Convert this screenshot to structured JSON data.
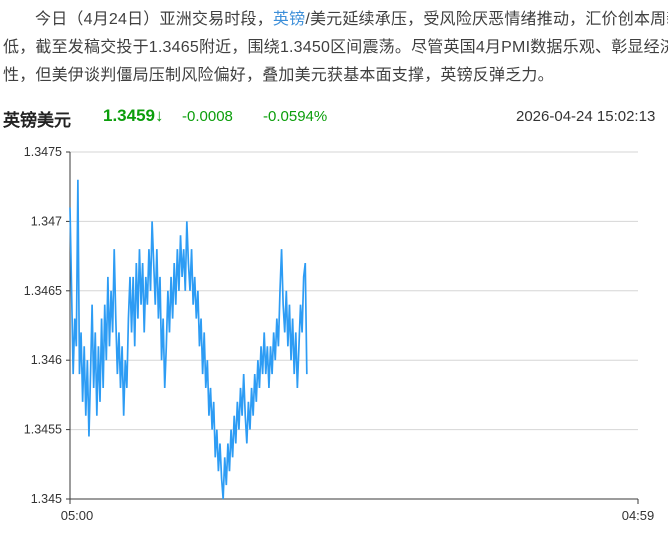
{
  "article": {
    "part1": "今日（4月24日）亚洲交易时段，",
    "link_text": "英镑",
    "part2": "/美元延续承压，受风险厌恶情绪推动，汇价创本周新低，截至发稿交投于1.3465附近，围绕1.3450区间震荡。尽管英国4月PMI数据乐观、彰显经济韧性，但美伊谈判僵局压制风险偏好，叠加美元获基本面支撑，英镑反弹乏力。"
  },
  "quote": {
    "pair_name": "英镑美元",
    "price": "1.3459",
    "direction_arrow": "↓",
    "change": "-0.0008",
    "change_pct": "-0.0594%",
    "timestamp": "2026-04-24 15:02:13"
  },
  "colors": {
    "link_blue": "#3d8fd9",
    "down_green": "#0b9e0b",
    "line_blue": "#2d9cf4"
  },
  "chart_data": {
    "type": "line",
    "title": "",
    "xlabel": "",
    "ylabel": "",
    "grid": true,
    "legend": "none",
    "x_unit": "minutes since 05:00",
    "x_range_minutes": [
      0,
      1439
    ],
    "xticks": [
      {
        "pos": 0,
        "label": "05:00"
      },
      {
        "pos": 1439,
        "label": "04:59"
      }
    ],
    "ylim": [
      1.345,
      1.3475
    ],
    "yticks": [
      {
        "v": 1.345,
        "label": "1.345"
      },
      {
        "v": 1.3455,
        "label": "1.3455"
      },
      {
        "v": 1.346,
        "label": "1.346"
      },
      {
        "v": 1.3465,
        "label": "1.3465"
      },
      {
        "v": 1.347,
        "label": "1.347"
      },
      {
        "v": 1.3475,
        "label": "1.3475"
      }
    ],
    "line_color": "#2d9cf4",
    "grid_color": "#d6d6d6",
    "axis_color": "#3a3a3a",
    "label_color": "#333333",
    "series": [
      {
        "name": "GBP/USD",
        "x_step_minutes": 4,
        "values": [
          1.3471,
          1.3465,
          1.3459,
          1.3463,
          1.3461,
          1.3473,
          1.3459,
          1.3462,
          1.3457,
          1.3461,
          1.3456,
          1.346,
          1.34545,
          1.3459,
          1.3464,
          1.3458,
          1.3462,
          1.3456,
          1.3461,
          1.3457,
          1.3463,
          1.3458,
          1.3464,
          1.346,
          1.3466,
          1.3461,
          1.3465,
          1.3462,
          1.3468,
          1.3463,
          1.3459,
          1.3462,
          1.3458,
          1.3461,
          1.3456,
          1.346,
          1.3458,
          1.3463,
          1.3466,
          1.3462,
          1.3466,
          1.3461,
          1.3467,
          1.3463,
          1.3468,
          1.3464,
          1.3467,
          1.3462,
          1.3466,
          1.3464,
          1.3468,
          1.3465,
          1.347,
          1.3467,
          1.3464,
          1.3468,
          1.3463,
          1.3466,
          1.346,
          1.3463,
          1.3458,
          1.3461,
          1.3465,
          1.3462,
          1.3466,
          1.3463,
          1.3467,
          1.3464,
          1.3468,
          1.3465,
          1.3469,
          1.3466,
          1.3468,
          1.3465,
          1.347,
          1.3467,
          1.3465,
          1.3468,
          1.3464,
          1.3466,
          1.3463,
          1.3465,
          1.3461,
          1.3463,
          1.3459,
          1.3462,
          1.3458,
          1.346,
          1.3456,
          1.3458,
          1.3455,
          1.3457,
          1.3453,
          1.3455,
          1.3452,
          1.3454,
          1.34515,
          1.345,
          1.3453,
          1.3451,
          1.3454,
          1.3452,
          1.3455,
          1.3453,
          1.3456,
          1.3454,
          1.3457,
          1.3455,
          1.3458,
          1.3456,
          1.3459,
          1.3456,
          1.3454,
          1.3457,
          1.3455,
          1.3458,
          1.3456,
          1.3459,
          1.3457,
          1.346,
          1.3458,
          1.3461,
          1.3459,
          1.3462,
          1.3459,
          1.3461,
          1.3458,
          1.3461,
          1.3459,
          1.3462,
          1.346,
          1.3463,
          1.3461,
          1.3465,
          1.3468,
          1.3464,
          1.3462,
          1.3465,
          1.3461,
          1.3464,
          1.346,
          1.3463,
          1.3459,
          1.3462,
          1.3458,
          1.3461,
          1.3464,
          1.3462,
          1.3466,
          1.3467,
          1.3459
        ]
      }
    ]
  }
}
